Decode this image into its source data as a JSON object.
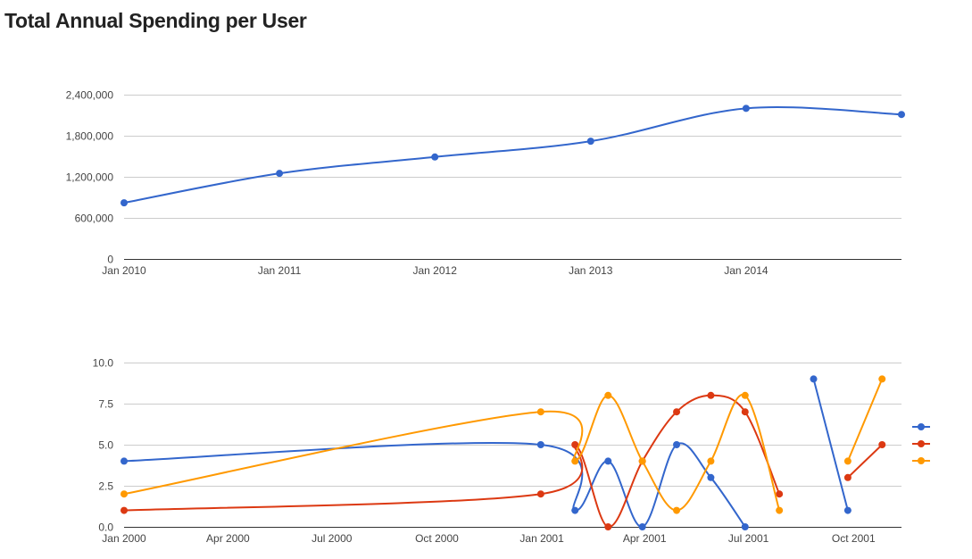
{
  "page": {
    "title": "Total Annual Spending per User"
  },
  "colors": {
    "blue": "#3366cc",
    "red": "#dc3912",
    "orange": "#ff9900",
    "grid": "#cccccc"
  },
  "chart_data": [
    {
      "type": "line",
      "title": "",
      "xlabel": "",
      "ylabel": "",
      "x_scale": "date",
      "xlim": [
        "2010-01-01",
        "2015-01-01"
      ],
      "ylim": [
        0,
        2400000
      ],
      "y_ticks": [
        0,
        600000,
        1200000,
        1800000,
        2400000
      ],
      "y_tick_labels": [
        "0",
        "600,000",
        "1,200,000",
        "1,800,000",
        "2,400,000"
      ],
      "x_ticks": [
        "2010-01-01",
        "2011-01-01",
        "2012-01-01",
        "2013-01-01",
        "2014-01-01"
      ],
      "x_tick_labels": [
        "Jan 2010",
        "Jan 2011",
        "Jan 2012",
        "Jan 2013",
        "Jan 2014"
      ],
      "grid": true,
      "legend": "none",
      "series": [
        {
          "color": "#3366cc",
          "points": [
            {
              "x": "2010-01-01",
              "y": 820000
            },
            {
              "x": "2011-01-01",
              "y": 1250000
            },
            {
              "x": "2012-01-01",
              "y": 1490000
            },
            {
              "x": "2013-01-01",
              "y": 1720000
            },
            {
              "x": "2014-01-01",
              "y": 2200000
            },
            {
              "x": "2015-01-01",
              "y": 2110000
            }
          ]
        }
      ]
    },
    {
      "type": "line",
      "title": "",
      "xlabel": "",
      "ylabel": "",
      "x_scale": "date",
      "xlim": [
        "2000-01-01",
        "2001-11-12"
      ],
      "ylim": [
        0,
        10
      ],
      "y_ticks": [
        0,
        2.5,
        5,
        7.5,
        10
      ],
      "y_tick_labels": [
        "0.0",
        "2.5",
        "5.0",
        "7.5",
        "10.0"
      ],
      "x_ticks": [
        "2000-01-01",
        "2000-04-01",
        "2000-07-01",
        "2000-10-01",
        "2001-01-01",
        "2001-04-01",
        "2001-07-01",
        "2001-10-01"
      ],
      "x_tick_labels": [
        "Jan 2000",
        "Apr 2000",
        "Jul 2000",
        "Oct 2000",
        "Jan 2001",
        "Apr 2001",
        "Jul 2001",
        "Oct 2001"
      ],
      "grid": true,
      "legend": "right",
      "series": [
        {
          "color": "#3366cc",
          "segments": [
            [
              {
                "x": "2000-01-01",
                "y": 4
              },
              {
                "x": "2000-12-31",
                "y": 5
              },
              {
                "x": "2001-01-30",
                "y": 1
              },
              {
                "x": "2001-02-28",
                "y": 4
              },
              {
                "x": "2001-03-30",
                "y": 0
              },
              {
                "x": "2001-04-29",
                "y": 5
              },
              {
                "x": "2001-05-29",
                "y": 3
              },
              {
                "x": "2001-06-28",
                "y": 0
              }
            ],
            [
              {
                "x": "2001-08-27",
                "y": 9
              },
              {
                "x": "2001-09-26",
                "y": 1
              }
            ]
          ]
        },
        {
          "color": "#dc3912",
          "segments": [
            [
              {
                "x": "2000-01-01",
                "y": 1
              },
              {
                "x": "2000-12-31",
                "y": 2
              },
              {
                "x": "2001-01-30",
                "y": 5
              },
              {
                "x": "2001-02-28",
                "y": 0
              },
              {
                "x": "2001-03-30",
                "y": 4
              },
              {
                "x": "2001-04-29",
                "y": 7
              },
              {
                "x": "2001-05-29",
                "y": 8
              },
              {
                "x": "2001-06-28",
                "y": 7
              },
              {
                "x": "2001-07-28",
                "y": 2
              }
            ],
            [
              {
                "x": "2001-09-26",
                "y": 3
              },
              {
                "x": "2001-10-26",
                "y": 5
              }
            ]
          ]
        },
        {
          "color": "#ff9900",
          "segments": [
            [
              {
                "x": "2000-01-01",
                "y": 2
              },
              {
                "x": "2000-12-31",
                "y": 7
              },
              {
                "x": "2001-01-30",
                "y": 4
              },
              {
                "x": "2001-02-28",
                "y": 8
              },
              {
                "x": "2001-03-30",
                "y": 4
              },
              {
                "x": "2001-04-29",
                "y": 1
              },
              {
                "x": "2001-05-29",
                "y": 4
              },
              {
                "x": "2001-06-28",
                "y": 8
              },
              {
                "x": "2001-07-28",
                "y": 1
              }
            ],
            [
              {
                "x": "2001-09-26",
                "y": 4
              },
              {
                "x": "2001-10-26",
                "y": 9
              }
            ]
          ]
        }
      ]
    }
  ]
}
